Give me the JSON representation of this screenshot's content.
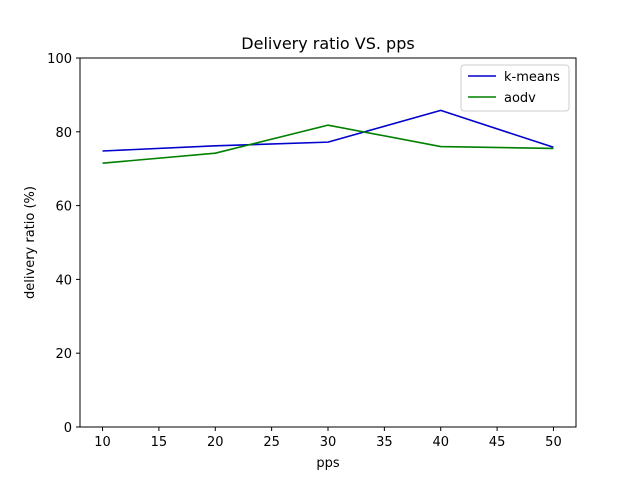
{
  "chart_data": {
    "type": "line",
    "title": "Delivery ratio VS. pps",
    "xlabel": "pps",
    "ylabel": "delivery ratio (%)",
    "x": [
      10,
      20,
      30,
      40,
      50
    ],
    "xlim": [
      8,
      52
    ],
    "ylim": [
      0,
      100
    ],
    "xticks": [
      10,
      15,
      20,
      25,
      30,
      35,
      40,
      45,
      50
    ],
    "yticks": [
      0,
      20,
      40,
      60,
      80,
      100
    ],
    "grid": false,
    "legend_position": "top-right",
    "series": [
      {
        "name": "k-means",
        "color": "#0000cc",
        "values": [
          74.8,
          76.2,
          77.2,
          85.8,
          75.8
        ]
      },
      {
        "name": "aodv",
        "color": "#008000",
        "values": [
          71.5,
          74.2,
          81.8,
          76.0,
          75.5
        ]
      }
    ]
  }
}
